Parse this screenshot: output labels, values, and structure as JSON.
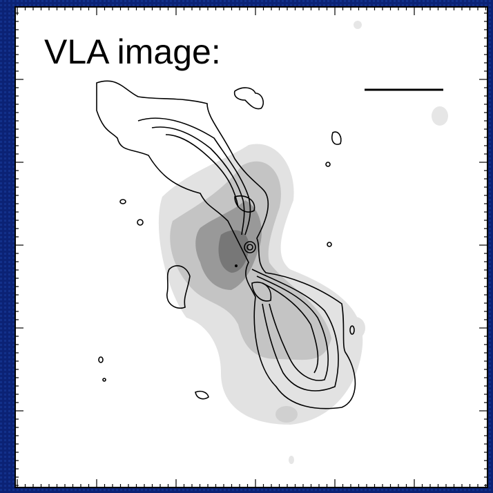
{
  "label": "VLA image:"
}
